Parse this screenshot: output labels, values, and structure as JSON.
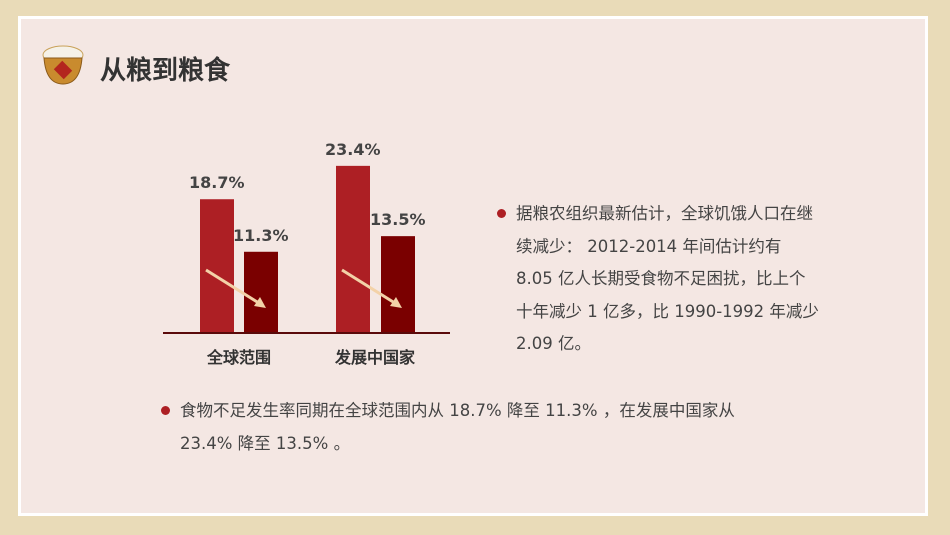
{
  "title": "从粮到粮食",
  "chart_data": {
    "type": "bar",
    "categories": [
      "全球范围",
      "发展中国家"
    ],
    "series": [
      {
        "color": "#ad1f24",
        "values": [
          18.7,
          23.4
        ],
        "value_labels": [
          "18.7%",
          "23.4%"
        ]
      },
      {
        "color": "#7a0000",
        "values": [
          11.3,
          13.5
        ],
        "value_labels": [
          "11.3%",
          "13.5%"
        ]
      }
    ]
  },
  "bullets": [
    "据粮农组织最新估计，全球饥饿人口在继续减少： 2012-2014 年间估计约有 8.05 亿人长期受食物不足困扰，比上个十年减少 1 亿多，比 1990-1992 年减少 2.09 亿。",
    "食物不足发生率同期在全球范围内从 18.7% 降至 11.3% ，在发展中国家从 23.4% 降至 13.5% 。"
  ]
}
